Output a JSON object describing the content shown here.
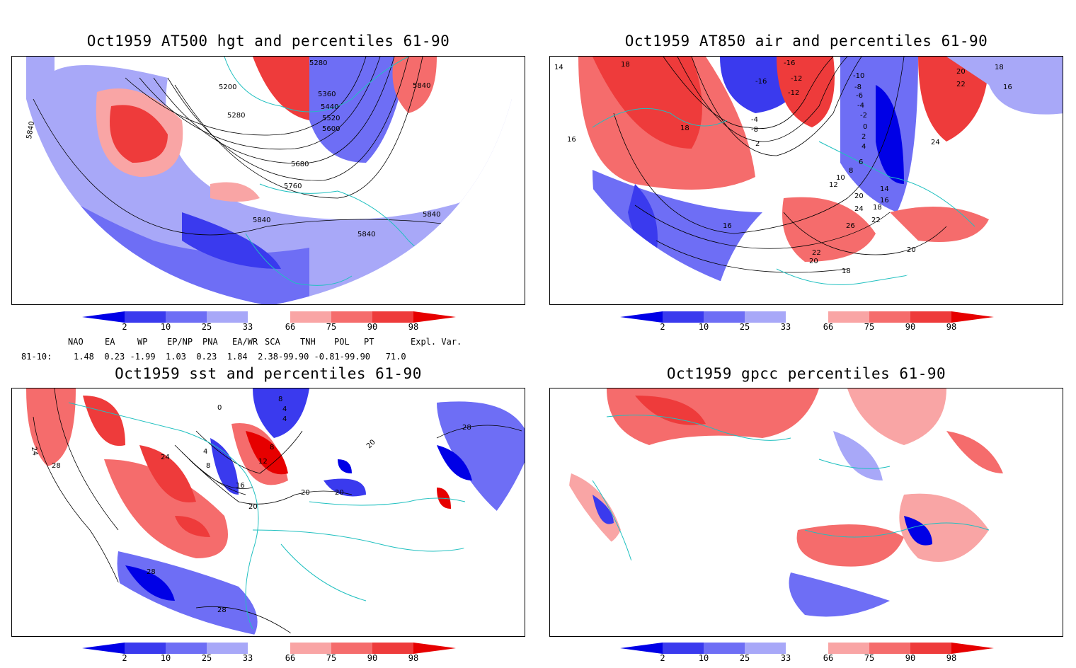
{
  "panels": {
    "tl": {
      "title": "Oct1959 AT500 hgt and percentiles 61-90",
      "labels": [
        "5280",
        "5200",
        "5280",
        "5360",
        "5440",
        "5520",
        "5600",
        "5680",
        "5760",
        "5840",
        "5840",
        "5840",
        "5840",
        "5840"
      ]
    },
    "tr": {
      "title": "Oct1959 AT850 air and percentiles 61-90",
      "labels": [
        "14",
        "16",
        "18",
        "-16",
        "-16",
        "-12",
        "-12",
        "-10",
        "-8",
        "-6",
        "-4",
        "-2",
        "0",
        "2",
        "4",
        "6",
        "8",
        "10",
        "12",
        "14",
        "16",
        "18",
        "20",
        "22",
        "24",
        "26",
        "20",
        "22",
        "20",
        "18",
        "18",
        "24",
        "20",
        "22",
        "18",
        "16",
        "16",
        "-4",
        "-8",
        "2"
      ]
    },
    "bl": {
      "title": "Oct1959 sst and percentiles 61-90",
      "labels": [
        "24",
        "28",
        "24",
        "4",
        "8",
        "12",
        "16",
        "20",
        "20",
        "20",
        "28",
        "28",
        "28",
        "8",
        "4",
        "0",
        "4",
        "8",
        "20"
      ]
    },
    "br": {
      "title": "Oct1959 gpcc percentiles 61-90",
      "labels": []
    }
  },
  "colorbar": {
    "labels": [
      "2",
      "10",
      "25",
      "33",
      "66",
      "75",
      "90",
      "98"
    ],
    "colors": {
      "b1": "#0000e6",
      "b2": "#3a3aee",
      "b3": "#6e6ef5",
      "b4": "#a8a8f8",
      "r1": "#f9a5a5",
      "r2": "#f56c6c",
      "r3": "#ee3b3b",
      "r4": "#e60000"
    }
  },
  "indices": {
    "headers": [
      "NAO",
      "EA",
      "WP",
      "EP/NP",
      "PNA",
      "EA/WR",
      "SCA",
      "TNH",
      "POL",
      "PT",
      "Expl. Var."
    ],
    "row_label": "81-10:",
    "values": "1.48  0.23 -1.99  1.03  0.23  1.84  2.38-99.90 -0.81-99.90   71.0"
  },
  "map_colors": {
    "coast": "#20c0c0",
    "contour": "#000000",
    "grid": "#888888"
  }
}
